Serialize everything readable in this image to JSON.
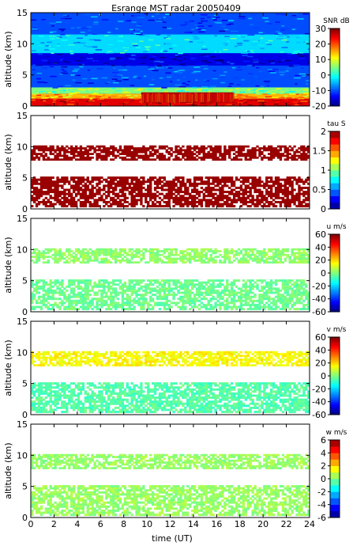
{
  "figure": {
    "title": "Esrange MST radar 20050409",
    "xlabel": "time (UT)",
    "x_ticks": [
      0,
      2,
      4,
      6,
      8,
      10,
      12,
      14,
      16,
      18,
      20,
      22,
      24
    ],
    "xlim": [
      0,
      24
    ]
  },
  "chart_data": [
    {
      "type": "heatmap",
      "name": "snr",
      "ylabel": "altitude (km)",
      "ylim": [
        0,
        15
      ],
      "y_ticks": [
        0,
        5,
        10,
        15
      ],
      "colorbar": {
        "label": "SNR dB",
        "range": [
          -20,
          30
        ],
        "ticks": [
          -20,
          -10,
          0,
          10,
          20,
          30
        ]
      },
      "colormap": "jet",
      "layers": [
        {
          "altitude": [
            0,
            1.2
          ],
          "value": 25
        },
        {
          "altitude": [
            1.2,
            2
          ],
          "value": 15
        },
        {
          "altitude": [
            2,
            3
          ],
          "value": 5
        },
        {
          "altitude": [
            3,
            6.5
          ],
          "value": -10
        },
        {
          "altitude": [
            6.5,
            8.5
          ],
          "value": -15
        },
        {
          "altitude": [
            8.5,
            11.5
          ],
          "value": -3
        },
        {
          "altitude": [
            11.5,
            15
          ],
          "value": -10
        }
      ],
      "features": [
        {
          "time": [
            9.5,
            17.5
          ],
          "altitude": [
            0.5,
            2.2
          ],
          "value": 28
        }
      ]
    },
    {
      "type": "heatmap",
      "name": "tau",
      "ylabel": "altitude (km)",
      "ylim": [
        0,
        15
      ],
      "y_ticks": [
        0,
        5,
        10,
        15
      ],
      "colorbar": {
        "label": "tau S",
        "range": [
          0,
          2
        ],
        "ticks": [
          0,
          0.5,
          1,
          1.5,
          2
        ]
      },
      "colormap": "jet-stepped",
      "layers": [
        {
          "altitude": [
            7.8,
            10.2
          ],
          "value": 1.95
        },
        {
          "altitude": [
            0.3,
            5.2
          ],
          "value": 1.95
        }
      ]
    },
    {
      "type": "heatmap",
      "name": "u",
      "ylabel": "altitude (km)",
      "ylim": [
        0,
        15
      ],
      "y_ticks": [
        0,
        5,
        10,
        15
      ],
      "colorbar": {
        "label": "u m/s",
        "range": [
          -60,
          60
        ],
        "ticks": [
          -60,
          -40,
          -20,
          0,
          20,
          40,
          60
        ]
      },
      "colormap": "jet",
      "layers": [
        {
          "altitude": [
            7.8,
            10.2
          ],
          "value": 2
        },
        {
          "altitude": [
            0.3,
            5.2
          ],
          "value": -2
        }
      ]
    },
    {
      "type": "heatmap",
      "name": "v",
      "ylabel": "altitude (km)",
      "ylim": [
        0,
        15
      ],
      "y_ticks": [
        0,
        5,
        10,
        15
      ],
      "colorbar": {
        "label": "v m/s",
        "range": [
          -60,
          60
        ],
        "ticks": [
          -60,
          -40,
          -20,
          0,
          20,
          40,
          60
        ]
      },
      "colormap": "jet",
      "layers": [
        {
          "altitude": [
            7.8,
            10.2
          ],
          "value": 15
        },
        {
          "altitude": [
            0.3,
            5.2
          ],
          "value": -5
        }
      ]
    },
    {
      "type": "heatmap",
      "name": "w",
      "ylabel": "altitude (km)",
      "ylim": [
        0,
        15
      ],
      "y_ticks": [
        0,
        5,
        10,
        15
      ],
      "colorbar": {
        "label": "w m/s",
        "range": [
          -6,
          6
        ],
        "ticks": [
          -6,
          -4,
          -2,
          0,
          2,
          4,
          6
        ]
      },
      "colormap": "jet-stepped",
      "layers": [
        {
          "altitude": [
            7.8,
            10.2
          ],
          "value": 0.3
        },
        {
          "altitude": [
            0.3,
            5.2
          ],
          "value": 0.3
        }
      ]
    }
  ]
}
